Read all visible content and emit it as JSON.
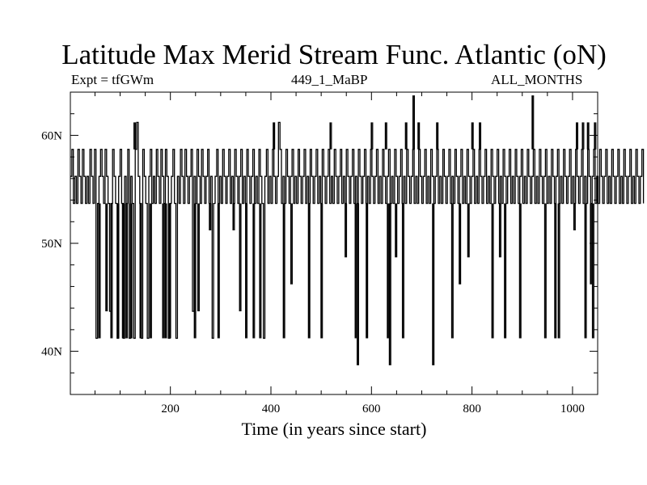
{
  "chart_data": {
    "type": "line",
    "title": "Latitude Max Merid Stream Func. Atlantic (oN)",
    "subtitle_left": "Expt = tfGWm",
    "subtitle_center": "449_1_MaBP",
    "subtitle_right": "ALL_MONTHS",
    "xlabel": "Time (in years since start)",
    "ylabel": "",
    "xlim": [
      1,
      1050
    ],
    "ylim": [
      36,
      64
    ],
    "x_ticks": [
      200,
      400,
      600,
      800,
      1000
    ],
    "y_ticks": [
      {
        "value": 40,
        "label": "40N"
      },
      {
        "value": 50,
        "label": "50N"
      },
      {
        "value": 60,
        "label": "60N"
      }
    ],
    "levels": [
      53.7,
      56.2,
      58.7
    ],
    "sample_step": 3,
    "series": [
      {
        "values": [
          56.2,
          58.7,
          53.7,
          56.2,
          53.7,
          58.7,
          56.2,
          53.7,
          58.7,
          56.2,
          53.7,
          56.2,
          53.7,
          58.7,
          56.2,
          53.7,
          58.7,
          41.2,
          53.7,
          56.2,
          58.7,
          56.2,
          53.7,
          58.7,
          56.2,
          53.7,
          43.7,
          53.7,
          58.7,
          56.2,
          53.7,
          41.2,
          56.2,
          58.7,
          53.7,
          41.2,
          56.2,
          53.7,
          58.7,
          41.2,
          56.2,
          53.7,
          41.2,
          58.7,
          61.2,
          56.2,
          53.7,
          41.2,
          58.7,
          56.2,
          53.7,
          41.2,
          56.2,
          58.7,
          53.7,
          56.2,
          53.7,
          58.7,
          56.2,
          53.7,
          58.7,
          56.2,
          53.7,
          58.7,
          56.2,
          41.2,
          53.7,
          56.2,
          58.7,
          53.7,
          41.2,
          56.2,
          53.7,
          58.7,
          56.2,
          53.7,
          58.7,
          56.2,
          53.7,
          56.2,
          58.7,
          43.7,
          56.2,
          53.7,
          58.7,
          56.2,
          53.7,
          58.7,
          56.2,
          53.7,
          56.2,
          58.7,
          53.7,
          56.2,
          41.2,
          53.7,
          56.2,
          58.7,
          53.7,
          56.2,
          53.7,
          58.7,
          56.2,
          53.7,
          56.2,
          58.7,
          53.7,
          56.2,
          53.7,
          58.7,
          56.2,
          53.7,
          56.2,
          58.7,
          53.7,
          56.2,
          53.7,
          58.7,
          56.2,
          53.7,
          56.2,
          58.7,
          53.7,
          56.2,
          53.7,
          58.7,
          56.2,
          53.7,
          41.2,
          56.2,
          58.7,
          53.7,
          56.2,
          53.7,
          58.7,
          56.2,
          53.7,
          56.2,
          61.2,
          58.7,
          53.7,
          56.2,
          53.7,
          58.7,
          56.2,
          53.7,
          56.2,
          58.7,
          53.7,
          56.2,
          53.7,
          58.7,
          56.2,
          53.7,
          56.2,
          58.7,
          53.7,
          56.2,
          53.7,
          58.7,
          56.2,
          53.7,
          56.2,
          58.7,
          53.7,
          56.2,
          53.7,
          58.7,
          56.2,
          53.7,
          56.2,
          58.7,
          53.7,
          56.2,
          53.7,
          58.7,
          56.2,
          53.7,
          56.2,
          58.7,
          53.7,
          56.2,
          53.7,
          58.7,
          56.2,
          53.7,
          56.2,
          58.7,
          53.7,
          56.2,
          53.7,
          58.7,
          56.2,
          53.7,
          56.2,
          58.7,
          53.7,
          56.2,
          53.7,
          58.7,
          56.2,
          53.7,
          56.2,
          58.7,
          53.7,
          56.2,
          53.7,
          58.7,
          56.2,
          53.7,
          56.2,
          58.7,
          53.7,
          56.2,
          53.7,
          58.7,
          56.2,
          53.7,
          56.2,
          58.7,
          53.7,
          56.2,
          53.7,
          58.7,
          56.2,
          53.7,
          56.2,
          58.7,
          53.7,
          56.2,
          53.7,
          58.7,
          56.2,
          53.7,
          56.2,
          58.7,
          53.7,
          56.2,
          53.7,
          58.7,
          56.2,
          53.7,
          56.2,
          58.7,
          53.7,
          56.2,
          53.7,
          58.7,
          56.2,
          53.7,
          56.2,
          58.7,
          53.7,
          56.2,
          53.7,
          58.7,
          56.2,
          53.7,
          56.2,
          58.7,
          53.7,
          56.2,
          53.7,
          58.7,
          56.2,
          53.7,
          56.2,
          58.7,
          53.7,
          56.2,
          53.7,
          58.7,
          56.2,
          53.7,
          56.2,
          58.7,
          53.7,
          56.2,
          53.7,
          58.7,
          56.2,
          53.7,
          56.2,
          58.7,
          53.7,
          56.2,
          53.7,
          58.7,
          56.2,
          53.7,
          56.2,
          58.7,
          53.7,
          56.2,
          53.7,
          58.7,
          56.2,
          53.7,
          56.2,
          58.7,
          53.7,
          56.2,
          53.7,
          58.7,
          56.2,
          53.7,
          56.2,
          58.7,
          53.7,
          56.2,
          53.7,
          58.7,
          56.2,
          53.7,
          56.2,
          58.7,
          53.7,
          56.2,
          53.7,
          58.7,
          56.2,
          53.7,
          56.2,
          58.7,
          53.7,
          56.2,
          53.7,
          58.7,
          56.2,
          53.7,
          56.2,
          58.7,
          53.7,
          56.2,
          53.7,
          58.7,
          56.2,
          53.7,
          56.2,
          58.7,
          53.7,
          56.2,
          53.7,
          58.7,
          56.2,
          53.7,
          56.2,
          58.7,
          53.7,
          56.2,
          53.7,
          58.7,
          56.2,
          53.7,
          56.2,
          58.7,
          53.7,
          56.2,
          53.7,
          58.7,
          56.2,
          53.7,
          56.2,
          58.7,
          53.7,
          56.2,
          53.7,
          58.7,
          56.2,
          53.7,
          56.2,
          58.7,
          53.7,
          56.2,
          53.7,
          58.7,
          56.2,
          53.7,
          56.2,
          58.7,
          53.7
        ]
      }
    ],
    "spikes": [
      {
        "x": 58,
        "value": 41.2
      },
      {
        "x": 72,
        "value": 43.7
      },
      {
        "x": 82,
        "value": 41.2
      },
      {
        "x": 95,
        "value": 41.2
      },
      {
        "x": 105,
        "value": 41.2
      },
      {
        "x": 112,
        "value": 41.2
      },
      {
        "x": 121,
        "value": 41.2
      },
      {
        "x": 128,
        "value": 61.2
      },
      {
        "x": 140,
        "value": 41.2
      },
      {
        "x": 160,
        "value": 41.2
      },
      {
        "x": 185,
        "value": 41.2
      },
      {
        "x": 190,
        "value": 41.2
      },
      {
        "x": 198,
        "value": 41.2
      },
      {
        "x": 248,
        "value": 41.2
      },
      {
        "x": 255,
        "value": 43.7
      },
      {
        "x": 278,
        "value": 51.2
      },
      {
        "x": 295,
        "value": 41.2
      },
      {
        "x": 325,
        "value": 51.2
      },
      {
        "x": 338,
        "value": 43.7
      },
      {
        "x": 350,
        "value": 41.2
      },
      {
        "x": 365,
        "value": 41.2
      },
      {
        "x": 378,
        "value": 41.2
      },
      {
        "x": 405,
        "value": 61.2
      },
      {
        "x": 425,
        "value": 41.2
      },
      {
        "x": 440,
        "value": 46.2
      },
      {
        "x": 475,
        "value": 41.2
      },
      {
        "x": 500,
        "value": 41.2
      },
      {
        "x": 518,
        "value": 61.2
      },
      {
        "x": 548,
        "value": 48.7
      },
      {
        "x": 568,
        "value": 41.2
      },
      {
        "x": 572,
        "value": 38.7
      },
      {
        "x": 590,
        "value": 41.2
      },
      {
        "x": 600,
        "value": 61.2
      },
      {
        "x": 628,
        "value": 61.2
      },
      {
        "x": 632,
        "value": 41.2
      },
      {
        "x": 636,
        "value": 38.7
      },
      {
        "x": 648,
        "value": 48.7
      },
      {
        "x": 662,
        "value": 41.2
      },
      {
        "x": 668,
        "value": 61.2
      },
      {
        "x": 683,
        "value": 63.7
      },
      {
        "x": 693,
        "value": 61.2
      },
      {
        "x": 722,
        "value": 38.7
      },
      {
        "x": 730,
        "value": 61.2
      },
      {
        "x": 760,
        "value": 41.2
      },
      {
        "x": 775,
        "value": 46.2
      },
      {
        "x": 792,
        "value": 48.7
      },
      {
        "x": 800,
        "value": 61.2
      },
      {
        "x": 815,
        "value": 61.2
      },
      {
        "x": 840,
        "value": 41.2
      },
      {
        "x": 855,
        "value": 48.7
      },
      {
        "x": 865,
        "value": 41.2
      },
      {
        "x": 895,
        "value": 41.2
      },
      {
        "x": 920,
        "value": 63.7
      },
      {
        "x": 945,
        "value": 41.2
      },
      {
        "x": 965,
        "value": 41.2
      },
      {
        "x": 972,
        "value": 41.2
      },
      {
        "x": 1003,
        "value": 51.2
      },
      {
        "x": 1008,
        "value": 61.2
      },
      {
        "x": 1020,
        "value": 61.2
      },
      {
        "x": 1025,
        "value": 41.2
      },
      {
        "x": 1030,
        "value": 61.2
      },
      {
        "x": 1036,
        "value": 46.2
      },
      {
        "x": 1040,
        "value": 41.2
      },
      {
        "x": 1044,
        "value": 61.2
      }
    ]
  }
}
